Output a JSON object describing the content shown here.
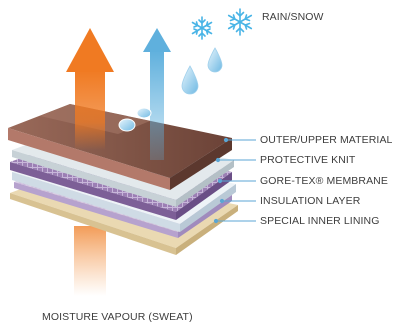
{
  "labels": {
    "rain_snow": "RAIN/SNOW",
    "outer_material": "OUTER/UPPER MATERIAL",
    "protective_knit": "PROTECTIVE KNIT",
    "membrane": "GORE-TEX® MEMBRANE",
    "insulation": "INSULATION LAYER",
    "inner_lining": "SPECIAL INNER LINING",
    "moisture_vapour": "MOISTURE VAPOUR (SWEAT)"
  },
  "colors": {
    "orange_arrow": "#f07a22",
    "blue_arrow": "#5fb0dd",
    "outer_material": "#7a4f45",
    "outer_material_light": "#a0705f",
    "knit": "#d9e1e4",
    "membrane": "#8a6aa0",
    "insulation": "#dde7f0",
    "lining": "#b9a6cf",
    "base": "#e9d7b0",
    "leader_line": "#5ba6d4",
    "snowflake": "#49b4e6",
    "label_text": "#3d3d3d"
  },
  "icons": [
    "snowflake-icon",
    "raindrop-icon",
    "vapour-arrow-icon",
    "water-arrow-icon"
  ]
}
